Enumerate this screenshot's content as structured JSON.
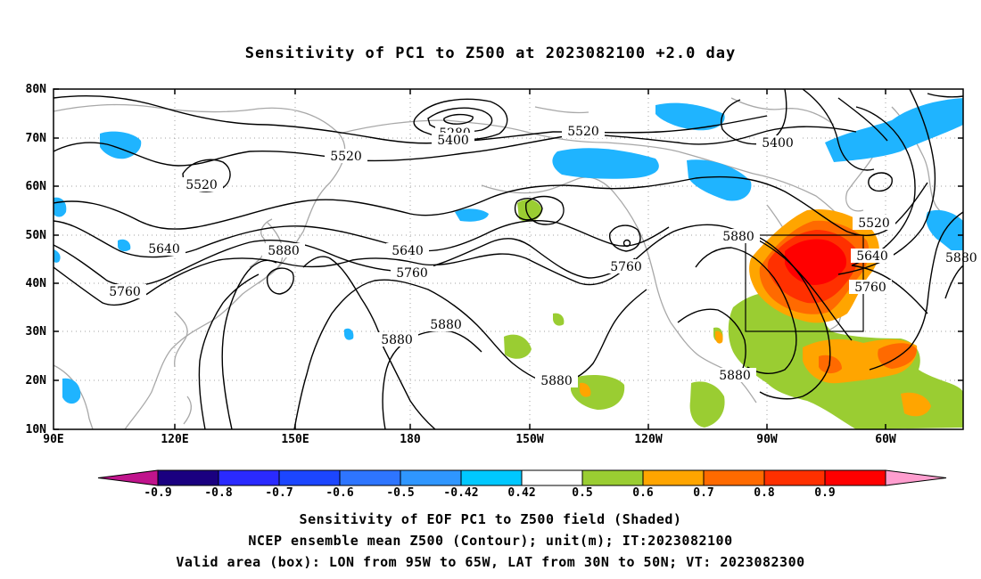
{
  "title": "Sensitivity of PC1 to Z500 at 2023082100 +2.0 day",
  "lat_labels": [
    "80N",
    "70N",
    "60N",
    "50N",
    "40N",
    "30N",
    "20N",
    "10N"
  ],
  "lon_labels": [
    "90E",
    "120E",
    "150E",
    "180",
    "150W",
    "120W",
    "90W",
    "60W"
  ],
  "contour_labels": [
    "5280",
    "5400",
    "5520",
    "5400",
    "5520",
    "5520",
    "5520",
    "5640",
    "5880",
    "5640",
    "5760",
    "5760",
    "5880",
    "5640",
    "5760",
    "5880",
    "5880",
    "5880",
    "5880",
    "5760",
    "5880"
  ],
  "colorbar": {
    "levels": [
      "-0.9",
      "-0.8",
      "-0.7",
      "-0.6",
      "-0.5",
      "-0.42",
      "0.42",
      "0.5",
      "0.6",
      "0.7",
      "0.8",
      "0.9"
    ],
    "colors": [
      "#1a0080",
      "#2a2aff",
      "#1c46ff",
      "#2e75ff",
      "#2f96ff",
      "#00c8ff",
      "#ffffff",
      "#9acd32",
      "#ffa500",
      "#ff6a00",
      "#ff3000",
      "#ff0000"
    ],
    "left_arrow_color": "#c0148c",
    "right_arrow_color": "#ff9ecf"
  },
  "valid_box": {
    "lon_west": "95W",
    "lon_east": "65W",
    "lat_south": "30N",
    "lat_north": "50N"
  },
  "captions": {
    "line1": "Sensitivity of EOF PC1 to Z500 field (Shaded)",
    "line2": "NCEP ensemble mean Z500 (Contour); unit(m); IT:2023082100",
    "line3": "Valid area (box): LON from 95W to 65W, LAT from 30N to 50N; VT: 2023082300"
  }
}
